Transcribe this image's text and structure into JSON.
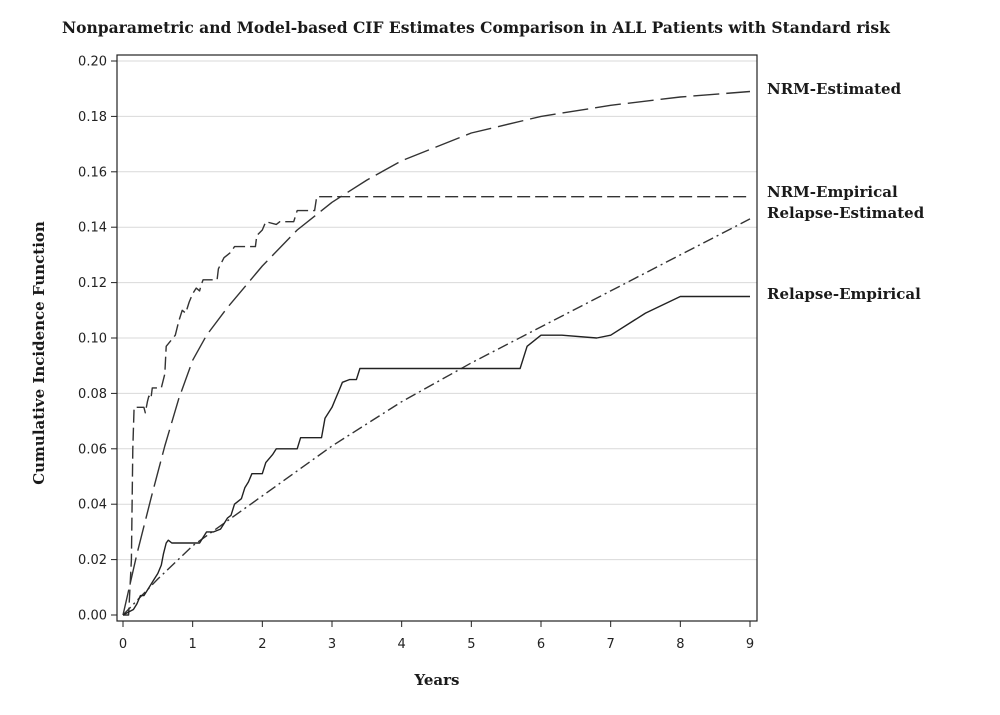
{
  "chart_data": {
    "type": "line",
    "title": "Nonparametric and Model-based CIF Estimates Comparison in ALL Patients with Standard risk",
    "xlabel": "Years",
    "ylabel": "Cumulative Incidence Function",
    "xlim": [
      0,
      9
    ],
    "ylim": [
      0,
      0.2
    ],
    "x_ticks": [
      "0",
      "1",
      "2",
      "3",
      "4",
      "5",
      "6",
      "7",
      "8",
      "9"
    ],
    "y_ticks": [
      "0.00",
      "0.02",
      "0.04",
      "0.06",
      "0.08",
      "0.10",
      "0.12",
      "0.14",
      "0.16",
      "0.18",
      "0.20"
    ],
    "grid": "horizontal",
    "legend": "labels at right end of lines",
    "series": [
      {
        "name": "NRM-Estimated",
        "style": "long-dash",
        "color": "#333333",
        "x": [
          0,
          0.2,
          0.4,
          0.6,
          0.8,
          1.0,
          1.2,
          1.5,
          2.0,
          2.5,
          3.0,
          3.5,
          4.0,
          5.0,
          6.0,
          7.0,
          8.0,
          9.0
        ],
        "y": [
          0,
          0.022,
          0.042,
          0.061,
          0.078,
          0.092,
          0.101,
          0.111,
          0.126,
          0.139,
          0.149,
          0.157,
          0.164,
          0.174,
          0.18,
          0.184,
          0.187,
          0.189
        ]
      },
      {
        "name": "NRM-Empirical",
        "style": "dash",
        "color": "#333333",
        "x": [
          0,
          0.08,
          0.12,
          0.14,
          0.16,
          0.3,
          0.32,
          0.35,
          0.37,
          0.4,
          0.42,
          0.55,
          0.6,
          0.62,
          0.75,
          0.8,
          0.85,
          0.9,
          0.95,
          1.0,
          1.05,
          1.1,
          1.12,
          1.15,
          1.35,
          1.37,
          1.45,
          1.5,
          1.55,
          1.6,
          1.65,
          1.9,
          1.92,
          2.0,
          2.05,
          2.2,
          2.25,
          2.45,
          2.5,
          2.75,
          2.78,
          9.0
        ],
        "y": [
          0,
          0.0,
          0.02,
          0.06,
          0.075,
          0.075,
          0.073,
          0.077,
          0.079,
          0.078,
          0.082,
          0.082,
          0.087,
          0.097,
          0.101,
          0.106,
          0.11,
          0.109,
          0.113,
          0.116,
          0.118,
          0.117,
          0.119,
          0.121,
          0.121,
          0.125,
          0.129,
          0.13,
          0.131,
          0.133,
          0.133,
          0.133,
          0.137,
          0.139,
          0.142,
          0.141,
          0.142,
          0.142,
          0.146,
          0.146,
          0.151,
          0.151
        ]
      },
      {
        "name": "Relapse-Estimated",
        "style": "dash-dot",
        "color": "#333333",
        "x": [
          0,
          0.5,
          1.0,
          1.5,
          2.0,
          3.0,
          4.0,
          5.0,
          6.0,
          7.0,
          8.0,
          9.0
        ],
        "y": [
          0,
          0.013,
          0.025,
          0.034,
          0.043,
          0.061,
          0.077,
          0.091,
          0.104,
          0.117,
          0.13,
          0.143
        ]
      },
      {
        "name": "Relapse-Empirical",
        "style": "solid",
        "color": "#222222",
        "x": [
          0,
          0.15,
          0.2,
          0.25,
          0.3,
          0.35,
          0.4,
          0.45,
          0.5,
          0.55,
          0.58,
          0.62,
          0.65,
          0.7,
          1.1,
          1.15,
          1.2,
          1.3,
          1.4,
          1.45,
          1.5,
          1.55,
          1.6,
          1.7,
          1.75,
          1.8,
          1.85,
          1.9,
          2.0,
          2.05,
          2.15,
          2.2,
          2.3,
          2.5,
          2.55,
          2.6,
          2.65,
          2.85,
          2.9,
          2.95,
          3.0,
          3.05,
          3.1,
          3.15,
          3.25,
          3.35,
          3.4,
          3.45,
          5.65,
          5.7,
          5.8,
          6.0,
          6.3,
          6.8,
          7.0,
          7.5,
          8.0,
          8.5,
          9.0
        ],
        "y": [
          0,
          0.002,
          0.004,
          0.007,
          0.007,
          0.009,
          0.011,
          0.013,
          0.015,
          0.018,
          0.022,
          0.026,
          0.027,
          0.026,
          0.026,
          0.028,
          0.03,
          0.03,
          0.031,
          0.033,
          0.035,
          0.036,
          0.04,
          0.042,
          0.046,
          0.048,
          0.051,
          0.051,
          0.051,
          0.055,
          0.058,
          0.06,
          0.06,
          0.06,
          0.064,
          0.064,
          0.064,
          0.064,
          0.071,
          0.073,
          0.075,
          0.078,
          0.081,
          0.084,
          0.085,
          0.085,
          0.089,
          0.089,
          0.089,
          0.089,
          0.097,
          0.101,
          0.101,
          0.1,
          0.101,
          0.109,
          0.115,
          0.115,
          0.115
        ]
      }
    ],
    "series_labels": [
      "NRM-Estimated",
      "NRM-Empirical",
      "Relapse-Estimated",
      "Relapse-Empirical"
    ]
  }
}
